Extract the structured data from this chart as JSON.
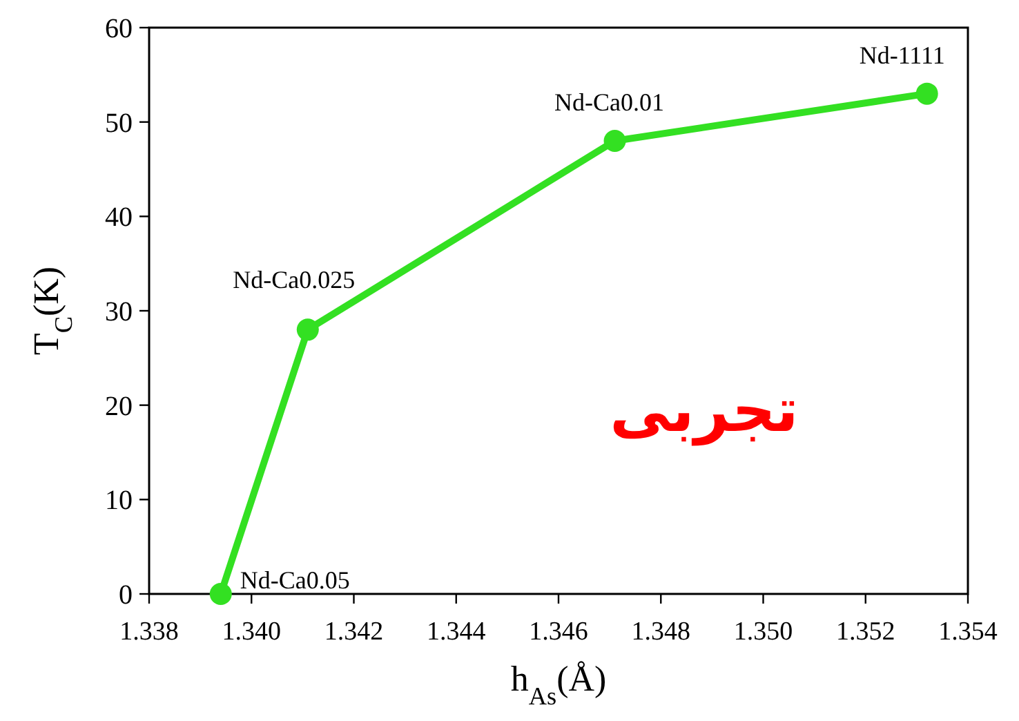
{
  "chart_data": {
    "type": "line",
    "xlabel": "h$_{As}$(Å)",
    "ylabel": "T$_{C}$(K)",
    "x": [
      1.3394,
      1.3411,
      1.3471,
      1.3532
    ],
    "series": [
      {
        "color": "#33e022",
        "values": [
          0,
          28,
          48,
          53
        ]
      }
    ],
    "marker": "circle",
    "line_style": "solid",
    "grid": false,
    "xlim": [
      1.338,
      1.354
    ],
    "ylim": [
      0,
      60
    ],
    "xticks": [
      1.338,
      {
        "value": 1.34,
        "label": "1.340"
      },
      1.342,
      1.344,
      1.346,
      1.348,
      {
        "value": 1.35,
        "label": "1.350"
      },
      1.352,
      1.354
    ],
    "yticks": [
      0,
      10,
      20,
      30,
      40,
      50,
      60
    ],
    "annotations": [
      {
        "text": "Nd-Ca0.05",
        "x": 1.3394,
        "y": 0
      },
      {
        "text": "Nd-Ca0.025",
        "x": 1.3411,
        "y": 28
      },
      {
        "text": "Nd-Ca0.01",
        "x": 1.3471,
        "y": 48
      },
      {
        "text": "Nd-1111",
        "x": 1.3532,
        "y": 53
      },
      "تجربی"
    ]
  }
}
